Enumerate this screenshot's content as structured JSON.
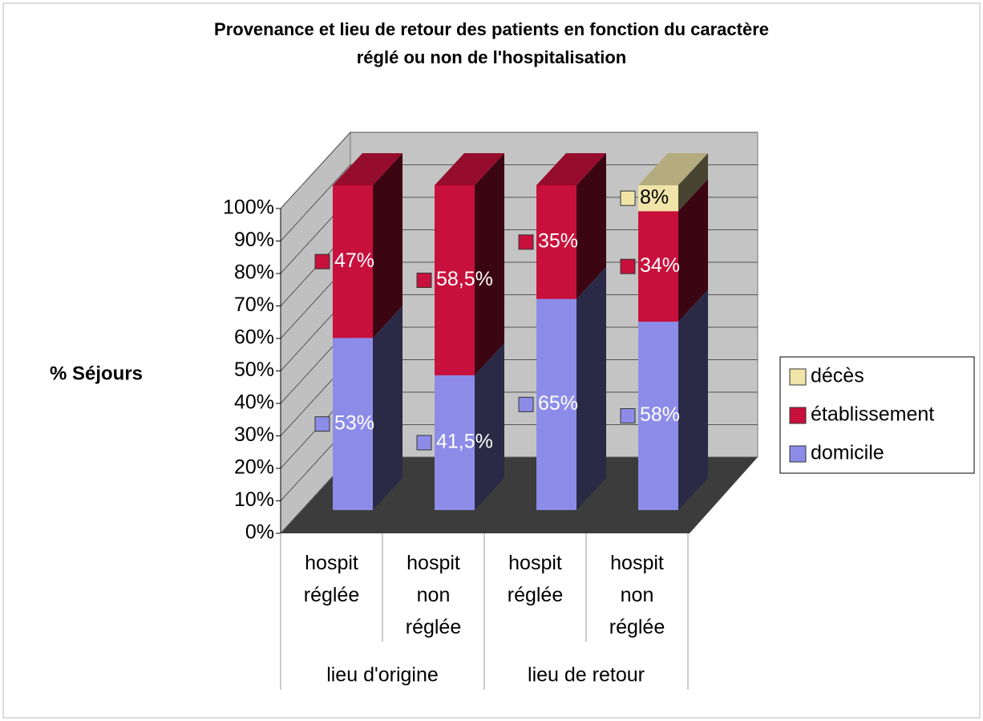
{
  "chart_data": {
    "type": "bar3d_stacked",
    "title": [
      "Provenance et lieu de retour des patients en fonction du caractère",
      "réglé ou non de l'hospitalisation"
    ],
    "y_label": "% Séjours",
    "categories": [
      "hospit réglée",
      "hospit non réglée",
      "hospit réglée",
      "hospit non réglée"
    ],
    "groups": [
      {
        "label": "lieu d'origine",
        "span": 2
      },
      {
        "label": "lieu de retour",
        "span": 2
      }
    ],
    "series": [
      {
        "name": "domicile",
        "color": "#8c8ce8",
        "values": [
          53,
          41.5,
          65,
          58
        ],
        "value_labels": [
          "53%",
          "41,5%",
          "65%",
          "58%"
        ]
      },
      {
        "name": "établissement",
        "color": "#c8103c",
        "values": [
          47,
          58.5,
          35,
          34
        ],
        "value_labels": [
          "47%",
          "58,5%",
          "35%",
          "34%"
        ]
      },
      {
        "name": "décès",
        "color": "#f0e4a8",
        "values": [
          null,
          null,
          null,
          8
        ],
        "value_labels": [
          null,
          null,
          null,
          "8%"
        ]
      }
    ],
    "ylim": [
      0,
      100
    ],
    "yticks": [
      {
        "value": 0,
        "label": "0%"
      },
      {
        "value": 10,
        "label": "10%"
      },
      {
        "value": 20,
        "label": "20%"
      },
      {
        "value": 30,
        "label": "30%"
      },
      {
        "value": 40,
        "label": "40%"
      },
      {
        "value": 50,
        "label": "50%"
      },
      {
        "value": 60,
        "label": "60%"
      },
      {
        "value": 70,
        "label": "70%"
      },
      {
        "value": 80,
        "label": "80%"
      },
      {
        "value": 90,
        "label": "90%"
      },
      {
        "value": 100,
        "label": "100%"
      }
    ],
    "grid": true,
    "legend": "right"
  }
}
